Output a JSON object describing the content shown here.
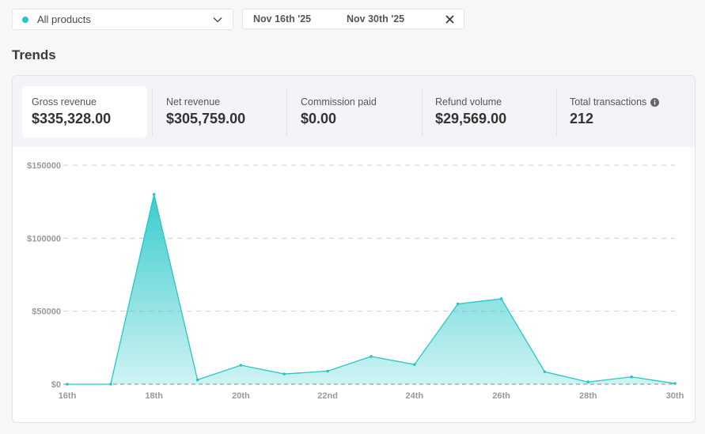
{
  "filter": {
    "product": "All products",
    "product_dot_color": "#26c6c8",
    "icon": "chevron-down-icon"
  },
  "date_range": {
    "start": "Nov 16th '25",
    "end": "Nov 30th '25",
    "clear_icon": "close-icon"
  },
  "section_title": "Trends",
  "metrics": [
    {
      "label": "Gross revenue",
      "value": "$335,328.00",
      "active": true
    },
    {
      "label": "Net revenue",
      "value": "$305,759.00"
    },
    {
      "label": "Commission paid",
      "value": "$0.00"
    },
    {
      "label": "Refund volume",
      "value": "$29,569.00"
    },
    {
      "label": "Total transactions",
      "value": "212",
      "icon": "info-icon"
    }
  ],
  "chart_data": {
    "type": "area",
    "x": [
      "16th",
      "17th",
      "18th",
      "19th",
      "20th",
      "21st",
      "22nd",
      "23rd",
      "24th",
      "25th",
      "26th",
      "27th",
      "28th",
      "29th",
      "30th"
    ],
    "x_tick_labels": [
      "16th",
      "18th",
      "20th",
      "22nd",
      "24th",
      "26th",
      "28th",
      "30th"
    ],
    "series": [
      {
        "values": [
          0,
          0,
          130000,
          3000,
          13000,
          7000,
          9000,
          19000,
          13500,
          55000,
          58500,
          8500,
          1500,
          5000,
          500
        ]
      }
    ],
    "y_ticks": [
      "$0",
      "$50000",
      "$100000",
      "$150000"
    ],
    "ylim": [
      0,
      150000
    ],
    "color": "#26c6c8",
    "grid": true
  }
}
